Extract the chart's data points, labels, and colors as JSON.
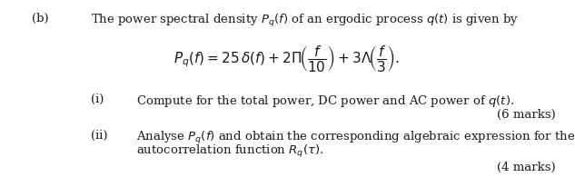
{
  "background_color": "#ffffff",
  "label_b": "(b)",
  "text_b": "The power spectral density $P_q(f)$ of an ergodic process $q(t)$ is given by",
  "equation": "$P_q(f) = 25\\,\\delta(f) + 2\\Pi\\!\\left(\\dfrac{f}{10}\\right) + 3\\Lambda\\!\\left(\\dfrac{f}{3}\\right).$",
  "label_i": "(i)",
  "text_i": "Compute for the total power, DC power and AC power of $q(t)$.",
  "marks_i": "(6 marks)",
  "label_ii": "(ii)",
  "text_ii_line1": "Analyse $P_q(f)$ and obtain the corresponding algebraic expression for the",
  "text_ii_line2": "autocorrelation function $R_q(\\tau)$.",
  "marks_ii": "(4 marks)",
  "font_size_main": 9.5,
  "font_size_eq": 11,
  "text_color": "#1a1a1a",
  "fig_width": 6.33,
  "fig_height": 2.06,
  "dpi": 100
}
